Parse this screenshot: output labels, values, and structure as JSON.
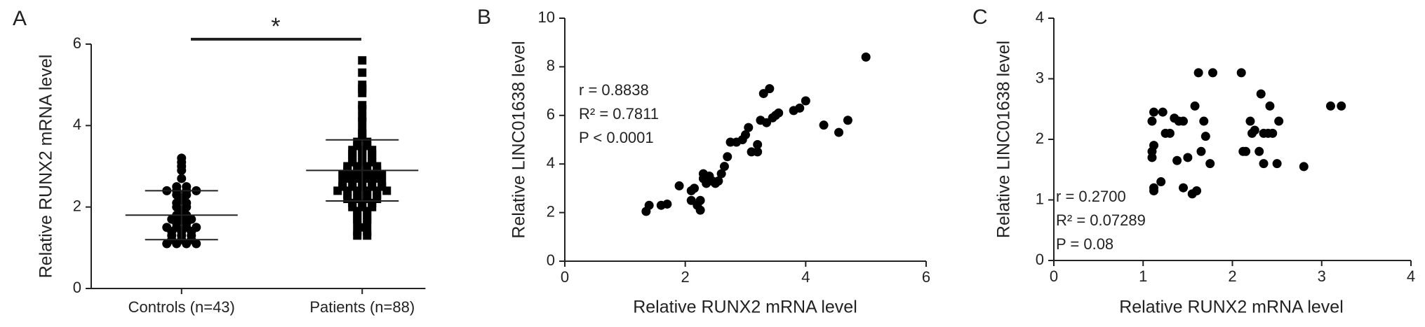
{
  "chart_data": [
    {
      "type": "dot",
      "panel_label": "A",
      "ylabel": "Relative RUNX2 mRNA level",
      "categories": [
        "Controls (n=43)",
        "Patients (n=88)"
      ],
      "markers": [
        "circle",
        "square"
      ],
      "color": "#000000",
      "values": [
        [
          3.2,
          3.1,
          3.0,
          2.9,
          2.7,
          2.5,
          2.5,
          2.4,
          2.4,
          2.4,
          2.4,
          2.3,
          2.3,
          2.2,
          2.1,
          2.1,
          2.0,
          2.0,
          1.9,
          1.8,
          1.8,
          1.7,
          1.7,
          1.7,
          1.6,
          1.6,
          1.5,
          1.5,
          1.5,
          1.5,
          1.4,
          1.4,
          1.4,
          1.3,
          1.3,
          1.3,
          1.2,
          1.2,
          1.2,
          1.1,
          1.1,
          1.1,
          1.1
        ],
        [
          5.6,
          5.3,
          5.0,
          4.9,
          4.8,
          4.5,
          4.4,
          4.2,
          4.1,
          3.9,
          3.8,
          3.7,
          3.6,
          3.5,
          3.5,
          3.4,
          3.4,
          3.4,
          3.3,
          3.3,
          3.3,
          3.2,
          3.2,
          3.2,
          3.1,
          3.1,
          3.1,
          3.0,
          3.0,
          3.0,
          3.0,
          2.9,
          2.9,
          2.9,
          2.9,
          2.8,
          2.8,
          2.8,
          2.8,
          2.8,
          2.7,
          2.7,
          2.7,
          2.7,
          2.6,
          2.6,
          2.6,
          2.6,
          2.6,
          2.5,
          2.5,
          2.5,
          2.5,
          2.5,
          2.4,
          2.4,
          2.4,
          2.4,
          2.4,
          2.4,
          2.3,
          2.3,
          2.3,
          2.3,
          2.2,
          2.2,
          2.2,
          2.2,
          2.1,
          2.1,
          2.1,
          2.0,
          2.0,
          2.0,
          1.9,
          1.9,
          1.8,
          1.8,
          1.7,
          1.7,
          1.6,
          1.6,
          1.5,
          1.4,
          1.4,
          1.3,
          1.3,
          3.6
        ]
      ],
      "mean": [
        1.8,
        2.9
      ],
      "sd": [
        0.6,
        0.75
      ],
      "annotation": "*",
      "ylim": [
        0,
        6
      ],
      "yticks": [
        0,
        2,
        4,
        6
      ]
    },
    {
      "type": "scatter",
      "panel_label": "B",
      "xlabel": "Relative RUNX2 mRNA level",
      "ylabel": "Relative LINC01638 level",
      "annotations": [
        "r = 0.8838",
        "R² = 0.7811",
        "P < 0.0001"
      ],
      "color": "#000000",
      "x": [
        1.35,
        1.4,
        1.6,
        1.7,
        1.9,
        2.1,
        2.1,
        2.15,
        2.2,
        2.25,
        2.25,
        2.3,
        2.3,
        2.35,
        2.4,
        2.45,
        2.5,
        2.55,
        2.6,
        2.65,
        2.7,
        2.75,
        2.85,
        2.95,
        3.0,
        3.05,
        3.1,
        3.2,
        3.2,
        3.25,
        3.3,
        3.35,
        3.4,
        3.45,
        3.5,
        3.55,
        3.8,
        3.9,
        4.0,
        4.3,
        4.55,
        4.7,
        5.0
      ],
      "values": [
        2.05,
        2.3,
        2.3,
        2.35,
        3.1,
        2.9,
        2.5,
        3.0,
        2.3,
        2.1,
        2.5,
        3.4,
        3.6,
        3.2,
        3.5,
        3.3,
        3.2,
        3.3,
        3.6,
        3.9,
        4.3,
        4.9,
        4.9,
        5.0,
        5.2,
        5.5,
        4.5,
        4.8,
        4.5,
        5.8,
        6.9,
        5.7,
        7.1,
        5.9,
        6.0,
        6.1,
        6.2,
        6.3,
        6.6,
        5.6,
        5.3,
        5.8,
        8.4
      ],
      "xlim": [
        0,
        6
      ],
      "xticks": [
        0,
        2,
        4,
        6
      ],
      "ylim": [
        0,
        10
      ],
      "yticks": [
        0,
        2,
        4,
        6,
        8,
        10
      ]
    },
    {
      "type": "scatter",
      "panel_label": "C",
      "xlabel": "Relative RUNX2 mRNA level",
      "ylabel": "Relative LINC01638 level",
      "annotations": [
        "r = 0.2700",
        "R² = 0.07289",
        "P = 0.08"
      ],
      "color": "#000000",
      "x": [
        1.12,
        1.12,
        1.1,
        1.1,
        1.12,
        1.1,
        1.12,
        1.22,
        1.2,
        1.25,
        1.3,
        1.35,
        1.4,
        1.38,
        1.45,
        1.45,
        1.5,
        1.55,
        1.6,
        1.58,
        1.62,
        1.65,
        1.68,
        1.7,
        1.75,
        1.78,
        2.1,
        2.12,
        2.15,
        2.2,
        2.22,
        2.25,
        2.3,
        2.32,
        2.35,
        2.4,
        2.42,
        2.45,
        2.5,
        2.52,
        2.8,
        3.1,
        3.22,
        2.35
      ],
      "values": [
        1.15,
        1.2,
        1.7,
        1.8,
        1.9,
        2.3,
        2.45,
        2.45,
        1.3,
        2.1,
        2.1,
        2.35,
        2.3,
        1.65,
        2.3,
        1.2,
        1.7,
        1.1,
        1.15,
        2.55,
        3.1,
        1.8,
        2.3,
        2.05,
        1.6,
        3.1,
        3.1,
        1.8,
        1.8,
        2.3,
        2.1,
        2.15,
        1.8,
        2.75,
        2.1,
        2.1,
        2.55,
        2.1,
        1.6,
        2.3,
        1.55,
        2.55,
        2.55,
        1.6
      ],
      "xlim": [
        0,
        4
      ],
      "xticks": [
        0,
        1,
        2,
        3,
        4
      ],
      "ylim": [
        0,
        4
      ],
      "yticks": [
        0,
        1,
        2,
        3,
        4
      ]
    }
  ]
}
